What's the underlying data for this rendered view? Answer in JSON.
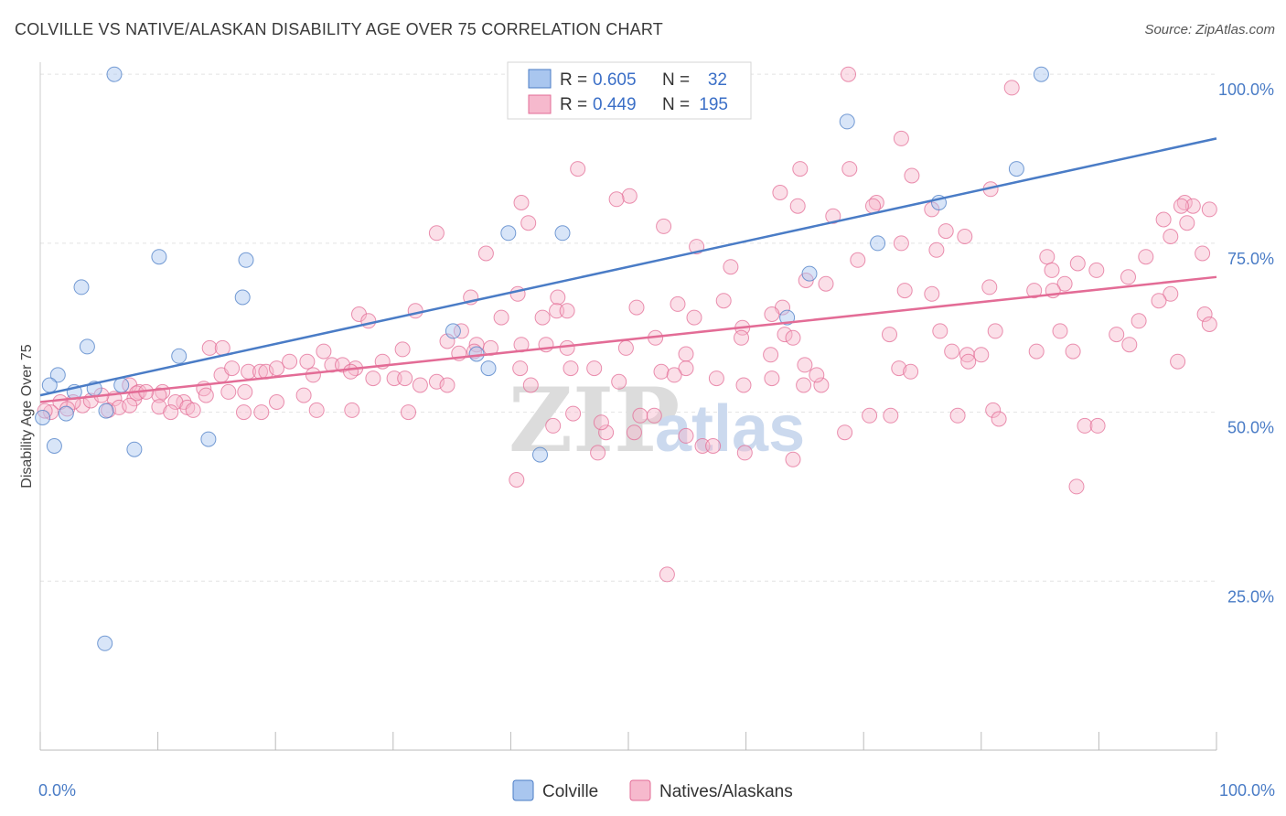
{
  "title": "COLVILLE VS NATIVE/ALASKAN DISABILITY AGE OVER 75 CORRELATION CHART",
  "source": "Source: ZipAtlas.com",
  "chart_data": {
    "type": "scatter",
    "title": "COLVILLE VS NATIVE/ALASKAN DISABILITY AGE OVER 75 CORRELATION CHART",
    "xlabel": "",
    "ylabel": "Disability Age Over 75",
    "xlim": [
      0,
      100
    ],
    "ylim": [
      0,
      103
    ],
    "x_ticks": [
      "0.0%",
      "100.0%"
    ],
    "y_ticks": [
      {
        "value": 25,
        "label": "25.0%"
      },
      {
        "value": 50,
        "label": "50.0%"
      },
      {
        "value": 75,
        "label": "75.0%"
      },
      {
        "value": 100,
        "label": "100.0%"
      }
    ],
    "grid": true,
    "watermark": {
      "zip": "ZIP",
      "atlas": "atlas"
    },
    "legend_stats": [
      {
        "r_label": "R =",
        "r": "0.605",
        "n_label": "N =",
        "n": "32"
      },
      {
        "r_label": "R =",
        "r": "0.449",
        "n_label": "N =",
        "n": "195"
      }
    ],
    "series": [
      {
        "name": "Colville",
        "color": "#4a7cc6",
        "fill": "#a9c6ef",
        "trend": {
          "x0": 0,
          "y0": 52.5,
          "x1": 100,
          "y1": 90.5
        },
        "points": [
          [
            6.3,
            100
          ],
          [
            85.1,
            100
          ],
          [
            68.6,
            93
          ],
          [
            83.0,
            86
          ],
          [
            76.4,
            81
          ],
          [
            39.8,
            76.5
          ],
          [
            44.4,
            76.5
          ],
          [
            71.2,
            75
          ],
          [
            10.1,
            73
          ],
          [
            17.5,
            72.5
          ],
          [
            3.5,
            68.5
          ],
          [
            65.4,
            70.5
          ],
          [
            17.2,
            67
          ],
          [
            4.0,
            59.7
          ],
          [
            11.8,
            58.3
          ],
          [
            37.1,
            58.6
          ],
          [
            35.1,
            62
          ],
          [
            63.5,
            64
          ],
          [
            1.5,
            55.5
          ],
          [
            0.8,
            54
          ],
          [
            6.9,
            54
          ],
          [
            2.9,
            53
          ],
          [
            4.6,
            53.5
          ],
          [
            38.1,
            56.5
          ],
          [
            2.2,
            49.8
          ],
          [
            0.2,
            49.2
          ],
          [
            5.6,
            50.2
          ],
          [
            1.2,
            45
          ],
          [
            14.3,
            46
          ],
          [
            8.0,
            44.5
          ],
          [
            42.5,
            43.7
          ],
          [
            5.5,
            15.8
          ]
        ]
      },
      {
        "name": "Natives/Alaskans",
        "color": "#e36c96",
        "fill": "#f6b9cd",
        "trend": {
          "x0": 0,
          "y0": 51.5,
          "x1": 100,
          "y1": 70.0
        },
        "points": [
          [
            68.7,
            100
          ],
          [
            82.6,
            98
          ],
          [
            73.2,
            90.5
          ],
          [
            45.7,
            86
          ],
          [
            68.8,
            86
          ],
          [
            64.6,
            86
          ],
          [
            74.1,
            85
          ],
          [
            80.8,
            83
          ],
          [
            62.9,
            82.5
          ],
          [
            50.1,
            82
          ],
          [
            49.0,
            81.5
          ],
          [
            71.1,
            81
          ],
          [
            70.8,
            80.5
          ],
          [
            40.9,
            81
          ],
          [
            97.3,
            81
          ],
          [
            98.0,
            80.5
          ],
          [
            97.0,
            80.5
          ],
          [
            99.4,
            80
          ],
          [
            64.4,
            80.5
          ],
          [
            75.8,
            80
          ],
          [
            67.4,
            79
          ],
          [
            95.5,
            78.5
          ],
          [
            97.5,
            78
          ],
          [
            41.5,
            78
          ],
          [
            53.0,
            77.5
          ],
          [
            77.0,
            76.8
          ],
          [
            78.6,
            76
          ],
          [
            96.1,
            76
          ],
          [
            33.7,
            76.5
          ],
          [
            73.2,
            75
          ],
          [
            76.2,
            74
          ],
          [
            55.8,
            74.5
          ],
          [
            37.9,
            73.5
          ],
          [
            85.6,
            73
          ],
          [
            69.5,
            72.5
          ],
          [
            98.8,
            73.5
          ],
          [
            94.0,
            73
          ],
          [
            88.2,
            72
          ],
          [
            58.7,
            71.5
          ],
          [
            86.0,
            71
          ],
          [
            89.8,
            71
          ],
          [
            92.5,
            70
          ],
          [
            87.1,
            69
          ],
          [
            65.1,
            69.5
          ],
          [
            66.8,
            69
          ],
          [
            80.7,
            68.5
          ],
          [
            84.5,
            68
          ],
          [
            73.5,
            68
          ],
          [
            75.8,
            67.5
          ],
          [
            86.1,
            68
          ],
          [
            96.1,
            67.5
          ],
          [
            95.1,
            66.5
          ],
          [
            40.6,
            67.5
          ],
          [
            36.6,
            67
          ],
          [
            44.0,
            67
          ],
          [
            58.1,
            66.5
          ],
          [
            54.2,
            66
          ],
          [
            63.1,
            65.5
          ],
          [
            50.7,
            65.5
          ],
          [
            31.9,
            65
          ],
          [
            43.9,
            65
          ],
          [
            44.8,
            65
          ],
          [
            27.1,
            64.5
          ],
          [
            42.7,
            64
          ],
          [
            55.6,
            64
          ],
          [
            62.2,
            64.5
          ],
          [
            39.2,
            64
          ],
          [
            99.0,
            64.5
          ],
          [
            93.4,
            63.5
          ],
          [
            27.9,
            63.5
          ],
          [
            99.4,
            63
          ],
          [
            76.5,
            62
          ],
          [
            72.2,
            61.5
          ],
          [
            91.5,
            61.5
          ],
          [
            86.7,
            62
          ],
          [
            81.2,
            62
          ],
          [
            63.3,
            61.5
          ],
          [
            35.8,
            62
          ],
          [
            52.3,
            61
          ],
          [
            64.0,
            61
          ],
          [
            59.7,
            62.5
          ],
          [
            34.6,
            60.5
          ],
          [
            59.6,
            61
          ],
          [
            38.3,
            59.5
          ],
          [
            37.1,
            60
          ],
          [
            36.9,
            59
          ],
          [
            35.6,
            58.7
          ],
          [
            24.1,
            59
          ],
          [
            14.4,
            59.5
          ],
          [
            15.5,
            59.5
          ],
          [
            30.8,
            59.3
          ],
          [
            49.8,
            59.5
          ],
          [
            40.9,
            60
          ],
          [
            43.0,
            60
          ],
          [
            44.8,
            59.5
          ],
          [
            54.9,
            58.6
          ],
          [
            62.1,
            58.5
          ],
          [
            77.5,
            59
          ],
          [
            78.8,
            58.5
          ],
          [
            80.0,
            58.5
          ],
          [
            84.7,
            59
          ],
          [
            87.8,
            59
          ],
          [
            92.6,
            60
          ],
          [
            78.9,
            57.5
          ],
          [
            96.7,
            57.5
          ],
          [
            65.0,
            57
          ],
          [
            54.9,
            56.5
          ],
          [
            26.8,
            56.5
          ],
          [
            40.8,
            56.5
          ],
          [
            45.1,
            56.5
          ],
          [
            47.1,
            56.5
          ],
          [
            52.8,
            56
          ],
          [
            57.5,
            55
          ],
          [
            53.9,
            55.5
          ],
          [
            23.2,
            55.5
          ],
          [
            15.4,
            55.5
          ],
          [
            16.3,
            56.5
          ],
          [
            17.7,
            56
          ],
          [
            18.7,
            56
          ],
          [
            19.2,
            56
          ],
          [
            20.1,
            56.5
          ],
          [
            21.2,
            57.5
          ],
          [
            22.7,
            57.5
          ],
          [
            24.8,
            57
          ],
          [
            25.7,
            57
          ],
          [
            26.4,
            56
          ],
          [
            28.3,
            55
          ],
          [
            29.1,
            57.5
          ],
          [
            30.1,
            55
          ],
          [
            31.0,
            55
          ],
          [
            32.3,
            54
          ],
          [
            33.7,
            54.5
          ],
          [
            34.6,
            54
          ],
          [
            41.7,
            54
          ],
          [
            49.2,
            54.5
          ],
          [
            59.8,
            54
          ],
          [
            62.2,
            55
          ],
          [
            64.9,
            54
          ],
          [
            66.4,
            54
          ],
          [
            66.0,
            55.5
          ],
          [
            73.0,
            56.5
          ],
          [
            74.0,
            56
          ],
          [
            13.9,
            53.5
          ],
          [
            16.0,
            53
          ],
          [
            17.4,
            53
          ],
          [
            20.1,
            51.5
          ],
          [
            22.4,
            52.5
          ],
          [
            14.1,
            52.5
          ],
          [
            10.4,
            53
          ],
          [
            10.1,
            52.5
          ],
          [
            12.2,
            51.5
          ],
          [
            7.6,
            54
          ],
          [
            8.4,
            53
          ],
          [
            3.6,
            51
          ],
          [
            4.3,
            51.7
          ],
          [
            6.3,
            52
          ],
          [
            8.0,
            52
          ],
          [
            8.2,
            52.8
          ],
          [
            9.0,
            53
          ],
          [
            5.2,
            52.5
          ],
          [
            2.8,
            51.5
          ],
          [
            1.7,
            51.5
          ],
          [
            2.3,
            50.5
          ],
          [
            0.9,
            50
          ],
          [
            0.4,
            50.2
          ],
          [
            5.8,
            50.3
          ],
          [
            6.7,
            50.7
          ],
          [
            7.6,
            51
          ],
          [
            11.5,
            51.5
          ],
          [
            10.1,
            50.8
          ],
          [
            11.1,
            50
          ],
          [
            12.5,
            50.7
          ],
          [
            13.0,
            50.3
          ],
          [
            17.3,
            50
          ],
          [
            18.8,
            50
          ],
          [
            23.5,
            50.3
          ],
          [
            26.5,
            50.3
          ],
          [
            31.3,
            50
          ],
          [
            45.3,
            49.8
          ],
          [
            48.1,
            47
          ],
          [
            50.5,
            47
          ],
          [
            47.7,
            48.5
          ],
          [
            43.6,
            48
          ],
          [
            51.0,
            49.5
          ],
          [
            52.2,
            49.5
          ],
          [
            70.5,
            49.5
          ],
          [
            72.3,
            49.5
          ],
          [
            78.0,
            49.5
          ],
          [
            81.0,
            50.3
          ],
          [
            81.5,
            49
          ],
          [
            88.8,
            48
          ],
          [
            89.9,
            48
          ],
          [
            68.4,
            47
          ],
          [
            54.9,
            46.5
          ],
          [
            56.3,
            45
          ],
          [
            57.2,
            45
          ],
          [
            47.4,
            44
          ],
          [
            59.9,
            44
          ],
          [
            64.0,
            43
          ],
          [
            40.5,
            40
          ],
          [
            88.1,
            39
          ],
          [
            53.3,
            26
          ]
        ]
      }
    ]
  }
}
